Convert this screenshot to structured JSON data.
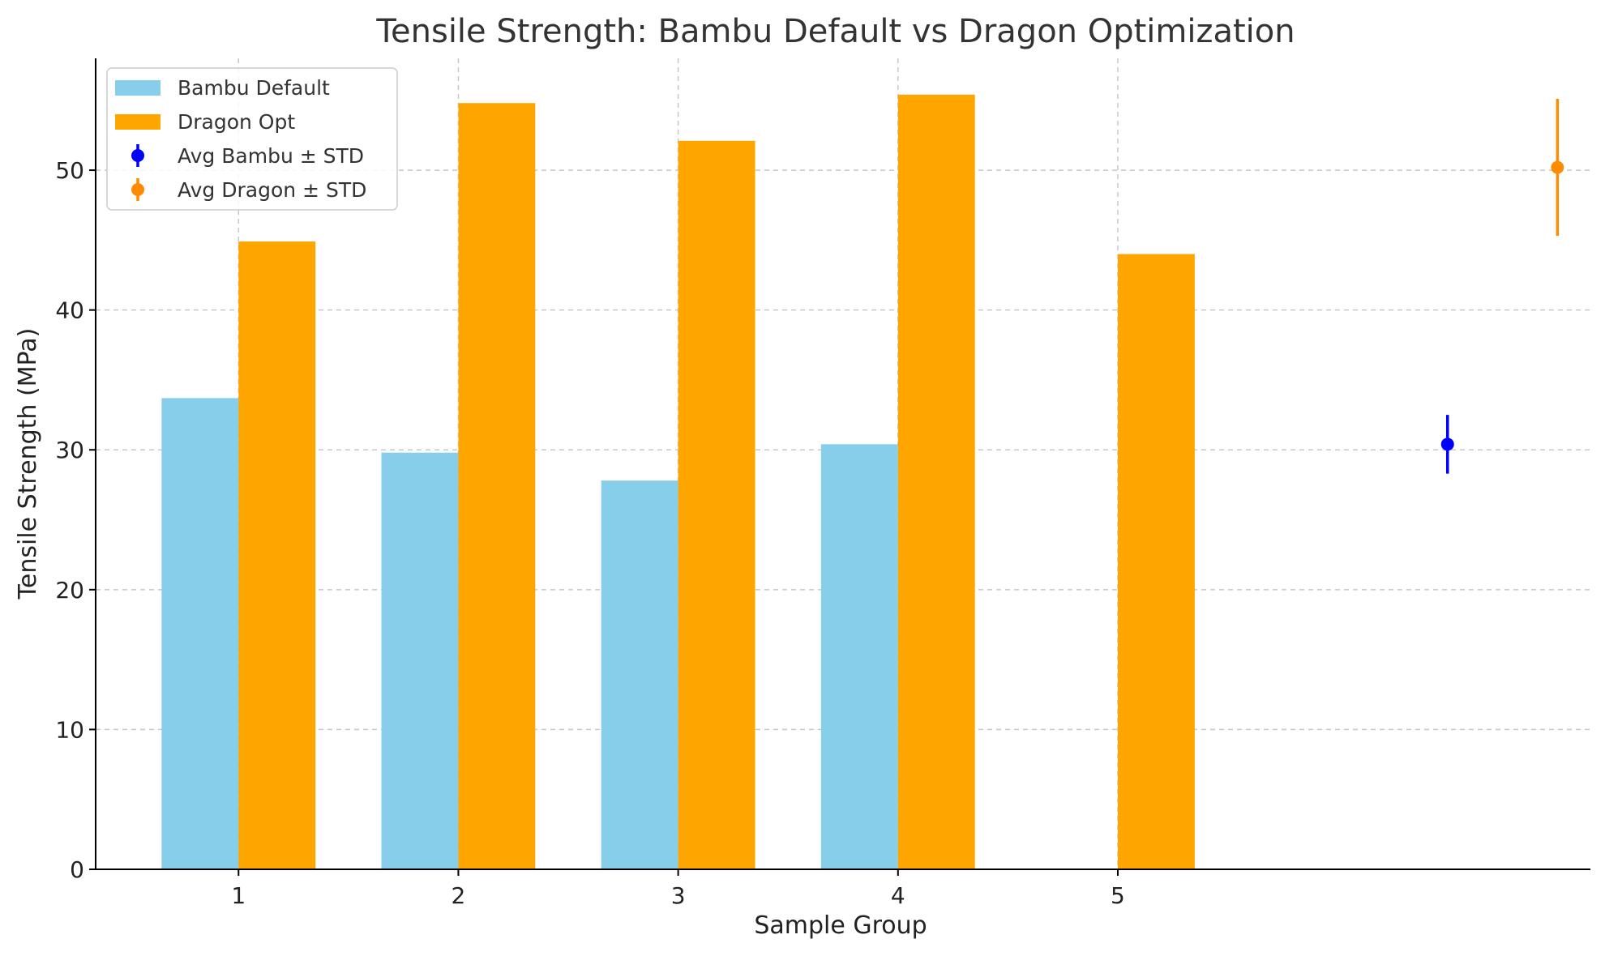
{
  "chart_data": {
    "type": "bar",
    "title": "Tensile Strength: Bambu Default vs Dragon Optimization",
    "xlabel": "Sample Group",
    "ylabel": "Tensile Strength (MPa)",
    "categories": [
      "1",
      "2",
      "3",
      "4",
      "5"
    ],
    "ylim": [
      0,
      58
    ],
    "xlim": [
      0.35,
      7.15
    ],
    "yticks": [
      0,
      10,
      20,
      30,
      40,
      50
    ],
    "grid": true,
    "legend_position": "top-left",
    "series": [
      {
        "name": "Bambu Default",
        "color": "#87CEEB",
        "x": [
          1,
          2,
          3,
          4
        ],
        "values": [
          33.7,
          29.8,
          27.8,
          30.4
        ]
      },
      {
        "name": "Dragon Opt",
        "color": "#FFA500",
        "x": [
          1,
          2,
          3,
          4,
          5
        ],
        "values": [
          44.9,
          54.8,
          52.1,
          55.4,
          44.0
        ]
      }
    ],
    "error_points": [
      {
        "name": "Avg Bambu ± STD",
        "color": "#0000FF",
        "x": 6.5,
        "y": 30.4,
        "std": 2.1
      },
      {
        "name": "Avg Dragon ± STD",
        "color": "#FF8C00",
        "x": 7.0,
        "y": 50.2,
        "std": 4.9
      }
    ]
  }
}
